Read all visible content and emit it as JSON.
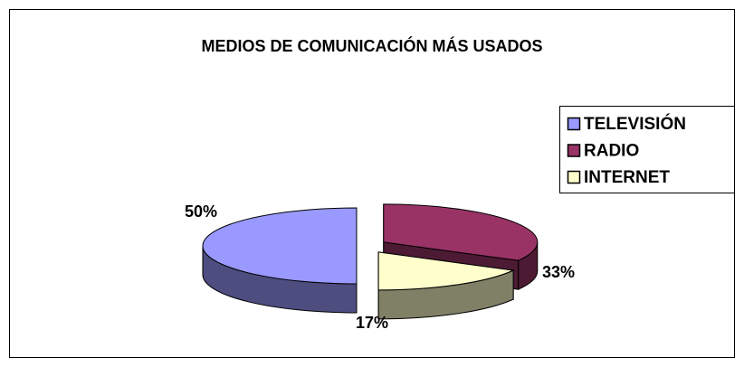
{
  "chart_data": {
    "type": "pie3d",
    "title": "MEDIOS DE COMUNICACIÓN MÁS USADOS",
    "categories": [
      "TELEVISIÓN",
      "RADIO",
      "INTERNET"
    ],
    "values": [
      50,
      33,
      17
    ],
    "value_labels": [
      "50%",
      "33%",
      "17%"
    ],
    "colors": [
      "#9999FF",
      "#993366",
      "#FFFFCC"
    ],
    "legend": "right"
  }
}
